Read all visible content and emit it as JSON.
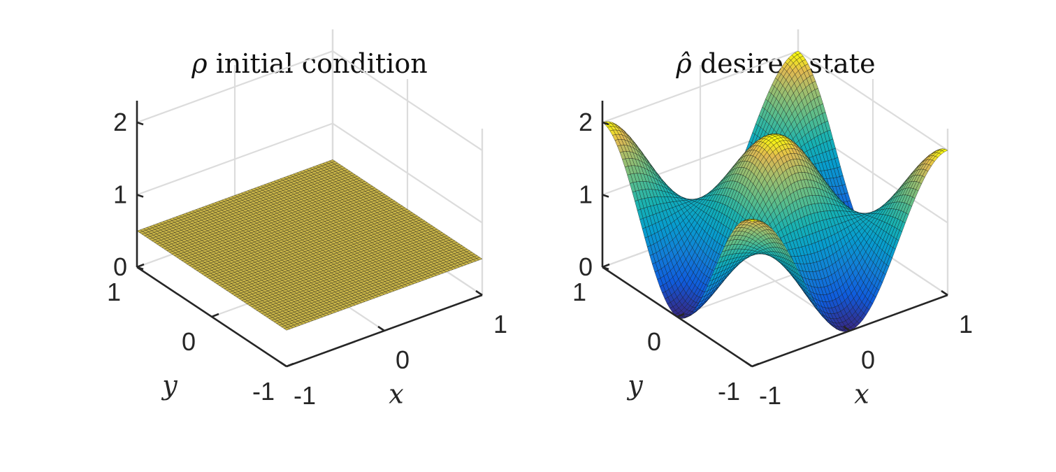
{
  "chart_data": [
    {
      "type": "surface",
      "title_symbol": "ρ",
      "title_text": "initial condition",
      "xlabel": "x",
      "ylabel": "y",
      "xlim": [
        -1,
        1
      ],
      "ylim": [
        -1,
        1
      ],
      "zlim": [
        0,
        2.3
      ],
      "xticks": [
        "-1",
        "0",
        "1"
      ],
      "yticks": [
        "-1",
        "0",
        "1"
      ],
      "zticks": [
        "0",
        "1",
        "2"
      ],
      "grid": true,
      "surface": {
        "kind": "constant",
        "value": 0.5
      },
      "colors": {
        "face": "#c9b548",
        "edge": "#111111"
      }
    },
    {
      "type": "surface",
      "title_symbol": "ρ̂",
      "title_text": "desired state",
      "xlabel": "x",
      "ylabel": "y",
      "xlim": [
        -1,
        1
      ],
      "ylim": [
        -1,
        1
      ],
      "zlim": [
        0,
        2.3
      ],
      "xticks": [
        "-1",
        "0",
        "1"
      ],
      "yticks": [
        "-1",
        "0",
        "1"
      ],
      "zticks": [
        "0",
        "1",
        "2"
      ],
      "grid": true,
      "surface": {
        "kind": "cosine-bump",
        "formula": "1 + cos(pi x) cos(pi y) (approx)",
        "min": 0.0,
        "max": 2.0
      },
      "colormap": "parula"
    }
  ]
}
